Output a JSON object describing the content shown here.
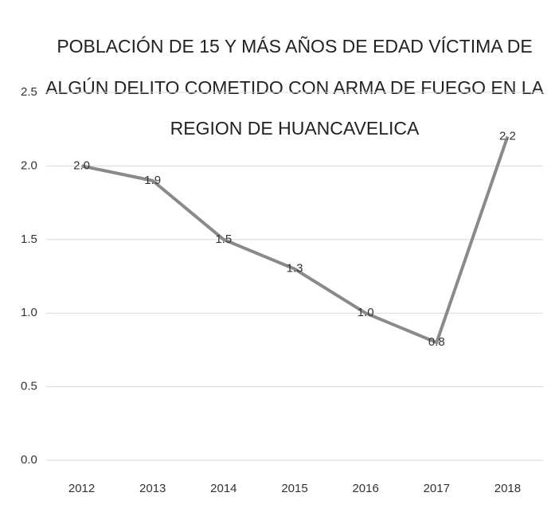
{
  "chart_data": {
    "type": "line",
    "title": [
      "POBLACIÓN DE 15 Y MÁS AÑOS DE EDAD VÍCTIMA DE",
      "ALGÚN DELITO COMETIDO CON ARMA DE FUEGO EN LA",
      "REGION DE HUANCAVELICA"
    ],
    "categories": [
      "2012",
      "2013",
      "2014",
      "2015",
      "2016",
      "2017",
      "2018"
    ],
    "values": [
      2.0,
      1.9,
      1.5,
      1.3,
      1.0,
      0.8,
      2.2
    ],
    "value_labels": [
      "2.0",
      "1.9",
      "1.5",
      "1.3",
      "1.0",
      "0.8",
      "2.2"
    ],
    "color": "#8a8a8a",
    "ylim": [
      0,
      2.5
    ],
    "yticks": [
      {
        "value": 0,
        "label": "0.0"
      },
      0.5,
      {
        "value": 1,
        "label": "1.0"
      },
      1.5,
      {
        "value": 2,
        "label": "2.0"
      },
      2.5
    ],
    "grid": true
  }
}
